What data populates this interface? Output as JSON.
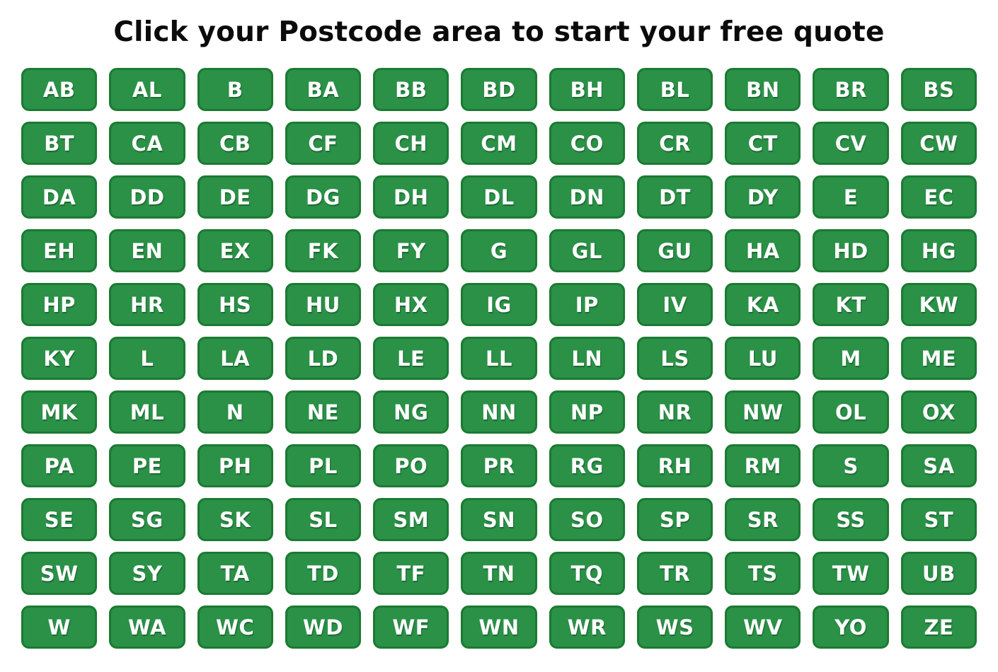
{
  "title": "Click your Postcode area to start your free quote",
  "colors": {
    "button_fill": "#2a9147",
    "button_border": "#1b7a33",
    "button_text": "#ffffff",
    "title_text": "#0b0b0b",
    "background": "#ffffff"
  },
  "postcode_rows": [
    [
      "AB",
      "AL",
      "B",
      "BA",
      "BB",
      "BD",
      "BH",
      "BL",
      "BN",
      "BR",
      "BS"
    ],
    [
      "BT",
      "CA",
      "CB",
      "CF",
      "CH",
      "CM",
      "CO",
      "CR",
      "CT",
      "CV",
      "CW"
    ],
    [
      "DA",
      "DD",
      "DE",
      "DG",
      "DH",
      "DL",
      "DN",
      "DT",
      "DY",
      "E",
      "EC"
    ],
    [
      "EH",
      "EN",
      "EX",
      "FK",
      "FY",
      "G",
      "GL",
      "GU",
      "HA",
      "HD",
      "HG"
    ],
    [
      "HP",
      "HR",
      "HS",
      "HU",
      "HX",
      "IG",
      "IP",
      "IV",
      "KA",
      "KT",
      "KW"
    ],
    [
      "KY",
      "L",
      "LA",
      "LD",
      "LE",
      "LL",
      "LN",
      "LS",
      "LU",
      "M",
      "ME"
    ],
    [
      "MK",
      "ML",
      "N",
      "NE",
      "NG",
      "NN",
      "NP",
      "NR",
      "NW",
      "OL",
      "OX"
    ],
    [
      "PA",
      "PE",
      "PH",
      "PL",
      "PO",
      "PR",
      "RG",
      "RH",
      "RM",
      "S",
      "SA"
    ],
    [
      "SE",
      "SG",
      "SK",
      "SL",
      "SM",
      "SN",
      "SO",
      "SP",
      "SR",
      "SS",
      "ST"
    ],
    [
      "SW",
      "SY",
      "TA",
      "TD",
      "TF",
      "TN",
      "TQ",
      "TR",
      "TS",
      "TW",
      "UB"
    ],
    [
      "W",
      "WA",
      "WC",
      "WD",
      "WF",
      "WN",
      "WR",
      "WS",
      "WV",
      "YO",
      "ZE"
    ]
  ]
}
